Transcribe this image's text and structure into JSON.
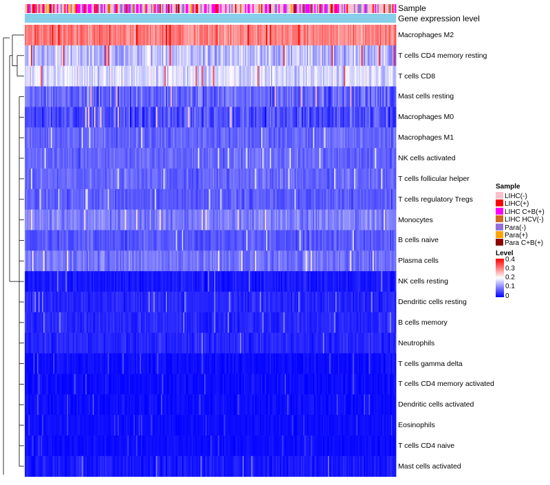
{
  "chart_data": {
    "type": "heatmap",
    "title": "",
    "annotation_rows": [
      "Sample",
      "Gene expression level"
    ],
    "sample_categories": [
      {
        "label": "LIHC(-)",
        "color": "#ffc0cb"
      },
      {
        "label": "LIHC(+)",
        "color": "#ff0000"
      },
      {
        "label": "LIHC C+B(+)",
        "color": "#ff00ff"
      },
      {
        "label": "LIHC HCV(-)",
        "color": "#d2691e"
      },
      {
        "label": "Para(-)",
        "color": "#9370db"
      },
      {
        "label": "Para(+)",
        "color": "#ffa500"
      },
      {
        "label": "Para C+B(+)",
        "color": "#8b0000"
      }
    ],
    "gene_expression_color": "#87ceeb",
    "level_legend": {
      "title": "Level",
      "ticks": [
        "0.4",
        "0.3",
        "0.2",
        "0.1",
        "0"
      ],
      "range": [
        0,
        0.4
      ],
      "colors": [
        "#0000ff",
        "#ffffff",
        "#ff0000"
      ]
    },
    "sample_legend_title": "Sample",
    "rows": [
      {
        "name": "Macrophages M2",
        "mean": 0.3,
        "spread": 0.08
      },
      {
        "name": "T cells CD4 memory resting",
        "mean": 0.15,
        "spread": 0.09
      },
      {
        "name": "T cells CD8",
        "mean": 0.17,
        "spread": 0.07
      },
      {
        "name": "Mast cells resting",
        "mean": 0.08,
        "spread": 0.07
      },
      {
        "name": "Macrophages M0",
        "mean": 0.06,
        "spread": 0.07
      },
      {
        "name": "Macrophages M1",
        "mean": 0.08,
        "spread": 0.04
      },
      {
        "name": "NK cells activated",
        "mean": 0.08,
        "spread": 0.04
      },
      {
        "name": "T cells follicular helper",
        "mean": 0.08,
        "spread": 0.04
      },
      {
        "name": "T cells regulatory  Tregs",
        "mean": 0.07,
        "spread": 0.04
      },
      {
        "name": "Monocytes",
        "mean": 0.1,
        "spread": 0.05
      },
      {
        "name": "B cells naive",
        "mean": 0.07,
        "spread": 0.04
      },
      {
        "name": "Plasma cells",
        "mean": 0.09,
        "spread": 0.05
      },
      {
        "name": "NK cells resting",
        "mean": 0.02,
        "spread": 0.03
      },
      {
        "name": "Dendritic cells resting",
        "mean": 0.03,
        "spread": 0.03
      },
      {
        "name": "B cells memory",
        "mean": 0.03,
        "spread": 0.03
      },
      {
        "name": "Neutrophils",
        "mean": 0.03,
        "spread": 0.03
      },
      {
        "name": "T cells gamma delta",
        "mean": 0.01,
        "spread": 0.02
      },
      {
        "name": "T cells CD4 memory activated",
        "mean": 0.01,
        "spread": 0.02
      },
      {
        "name": "Dendritic cells activated",
        "mean": 0.01,
        "spread": 0.02
      },
      {
        "name": "Eosinophils",
        "mean": 0.01,
        "spread": 0.015
      },
      {
        "name": "T cells CD4 naive",
        "mean": 0.01,
        "spread": 0.015
      },
      {
        "name": "Mast cells activated",
        "mean": 0.02,
        "spread": 0.03
      }
    ],
    "num_samples": 300
  }
}
